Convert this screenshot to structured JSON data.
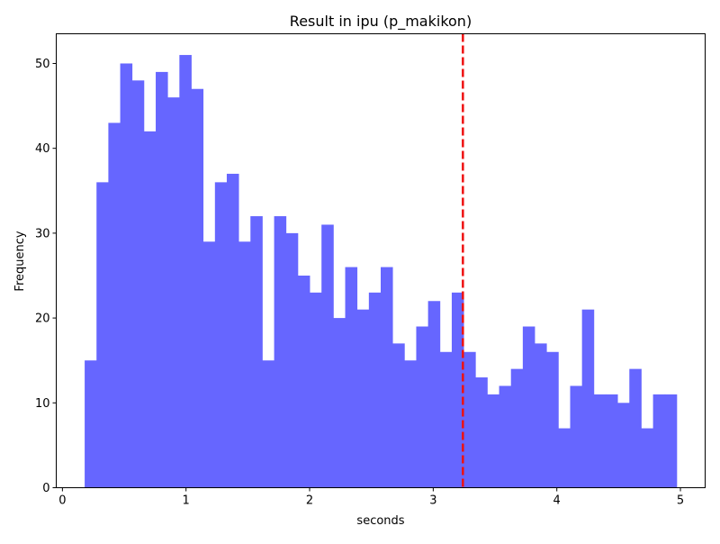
{
  "chart_data": {
    "type": "bar",
    "title": "Result in ipu (p_makikon)",
    "xlabel": "seconds",
    "ylabel": "Frequency",
    "xlim": [
      -0.05,
      5.2
    ],
    "ylim": [
      0,
      53.5
    ],
    "xticks": [
      0,
      1,
      2,
      3,
      4,
      5
    ],
    "yticks": [
      0,
      10,
      20,
      30,
      40,
      50
    ],
    "grid": false,
    "bin_start": 0.18,
    "bin_width": 0.0958,
    "counts": [
      15,
      36,
      43,
      50,
      48,
      42,
      49,
      46,
      51,
      47,
      29,
      36,
      37,
      29,
      32,
      15,
      32,
      30,
      25,
      23,
      31,
      20,
      26,
      21,
      23,
      26,
      17,
      15,
      19,
      22,
      16,
      23,
      16,
      13,
      11,
      12,
      14,
      19,
      17,
      16,
      7,
      12,
      21,
      11,
      11,
      10,
      14,
      7,
      11,
      11
    ],
    "bar_color": "#6666ff",
    "reference_line": {
      "x": 3.24,
      "color": "#ee1111",
      "style": "dashed"
    }
  }
}
